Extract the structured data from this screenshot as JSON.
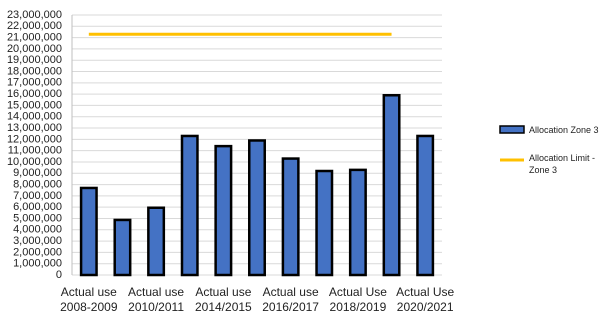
{
  "chart_data": {
    "type": "bar",
    "categories": [
      "Actual use\n2008-2009",
      null,
      "Actual use\n2010/2011",
      null,
      "Actual use\n2014/2015",
      null,
      "Actual use\n2016/2017",
      null,
      "Actual Use\n2018/2019",
      null,
      "Actual Use\n2020/2021"
    ],
    "series": [
      {
        "name": "Allocation Zone 3",
        "type": "bar",
        "color": "#4472c4",
        "values": [
          7700000,
          4870000,
          5950000,
          12300000,
          11400000,
          11900000,
          10300000,
          9200000,
          9300000,
          15900000,
          12300000
        ]
      },
      {
        "name": "Allocation Limit - Zone 3",
        "type": "line",
        "color": "#ffc000",
        "values": [
          21300000,
          21300000,
          21300000,
          21300000,
          21300000,
          21300000,
          21300000,
          21300000,
          21300000,
          21300000,
          null
        ]
      }
    ],
    "ylim": [
      0,
      23000000
    ],
    "yticks": [
      {
        "value": 0,
        "label": "0"
      },
      {
        "value": 1000000,
        "label": "1,000,000"
      },
      {
        "value": 2000000,
        "label": "2,000,000"
      },
      {
        "value": 3000000,
        "label": "3,000,000"
      },
      {
        "value": 4000000,
        "label": "4,000,000"
      },
      {
        "value": 5000000,
        "label": "5,000,000"
      },
      {
        "value": 6000000,
        "label": "6,000,000"
      },
      {
        "value": 7000000,
        "label": "7,000,000"
      },
      {
        "value": 8000000,
        "label": "8,000,000"
      },
      {
        "value": 9000000,
        "label": "9,000,000"
      },
      {
        "value": 10000000,
        "label": "10,000,000"
      },
      {
        "value": 11000000,
        "label": "11,000,000"
      },
      {
        "value": 12000000,
        "label": "12,000,000"
      },
      {
        "value": 13000000,
        "label": "13,000,000"
      },
      {
        "value": 14000000,
        "label": "14,000,000"
      },
      {
        "value": 15000000,
        "label": "15,000,000"
      },
      {
        "value": 16000000,
        "label": "16,000,000"
      },
      {
        "value": 17000000,
        "label": "17,000,000"
      },
      {
        "value": 18000000,
        "label": "18,000,000"
      },
      {
        "value": 19000000,
        "label": "19,000,000"
      },
      {
        "value": 20000000,
        "label": "20,000,000"
      },
      {
        "value": 21000000,
        "label": "21,000,000"
      },
      {
        "value": 22000000,
        "label": "22,000,000"
      },
      {
        "value": 23000000,
        "label": "23,000,000"
      }
    ],
    "grid": true
  }
}
